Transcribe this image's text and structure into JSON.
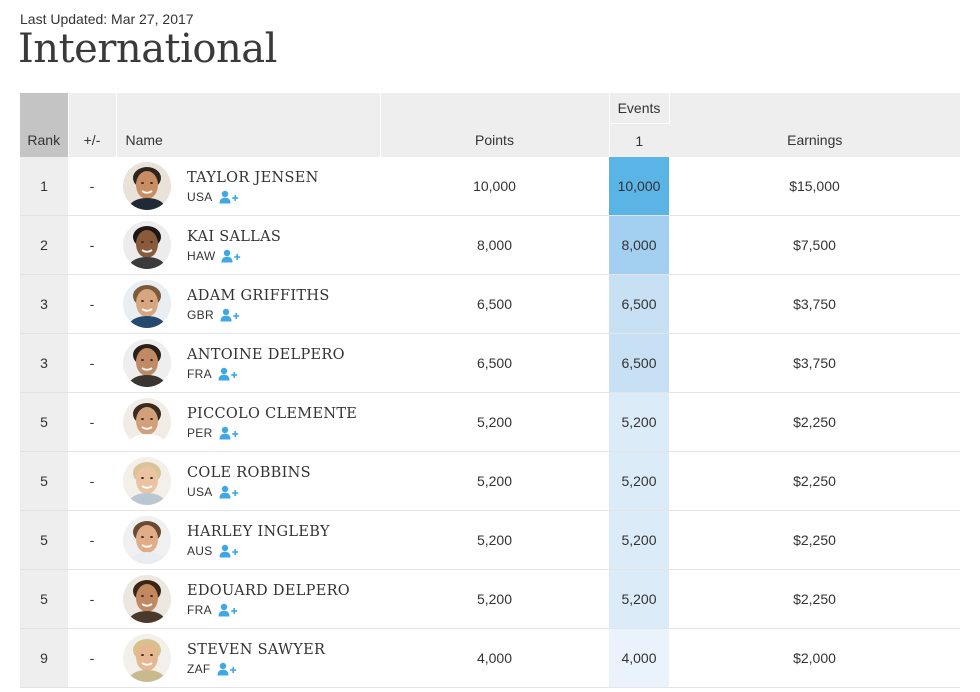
{
  "header": {
    "last_updated": "Last Updated: Mar 27, 2017",
    "title": "International"
  },
  "table": {
    "columns": {
      "rank": "Rank",
      "change": "+/-",
      "name": "Name",
      "points": "Points",
      "events_group": "Events",
      "event_1": "1",
      "earnings": "Earnings"
    },
    "rows": [
      {
        "rank": "1",
        "change": "-",
        "name": "TAYLOR JENSEN",
        "country": "USA",
        "points": "10,000",
        "event1": "10,000",
        "earnings": "$15,000",
        "event1_color": "#5ab4e6"
      },
      {
        "rank": "2",
        "change": "-",
        "name": "KAI SALLAS",
        "country": "HAW",
        "points": "8,000",
        "event1": "8,000",
        "earnings": "$7,500",
        "event1_color": "#a3cff0"
      },
      {
        "rank": "3",
        "change": "-",
        "name": "ADAM GRIFFITHS",
        "country": "GBR",
        "points": "6,500",
        "event1": "6,500",
        "earnings": "$3,750",
        "event1_color": "#c8e0f4"
      },
      {
        "rank": "3",
        "change": "-",
        "name": "ANTOINE DELPERO",
        "country": "FRA",
        "points": "6,500",
        "event1": "6,500",
        "earnings": "$3,750",
        "event1_color": "#c8e0f4"
      },
      {
        "rank": "5",
        "change": "-",
        "name": "PICCOLO CLEMENTE",
        "country": "PER",
        "points": "5,200",
        "event1": "5,200",
        "earnings": "$2,250",
        "event1_color": "#dcebf8"
      },
      {
        "rank": "5",
        "change": "-",
        "name": "COLE ROBBINS",
        "country": "USA",
        "points": "5,200",
        "event1": "5,200",
        "earnings": "$2,250",
        "event1_color": "#dcebf8"
      },
      {
        "rank": "5",
        "change": "-",
        "name": "HARLEY INGLEBY",
        "country": "AUS",
        "points": "5,200",
        "event1": "5,200",
        "earnings": "$2,250",
        "event1_color": "#dcebf8"
      },
      {
        "rank": "5",
        "change": "-",
        "name": "EDOUARD DELPERO",
        "country": "FRA",
        "points": "5,200",
        "event1": "5,200",
        "earnings": "$2,250",
        "event1_color": "#dcebf8"
      },
      {
        "rank": "9",
        "change": "-",
        "name": "STEVEN SAWYER",
        "country": "ZAF",
        "points": "4,000",
        "event1": "4,000",
        "earnings": "$2,000",
        "event1_color": "#eaf3fb"
      }
    ]
  },
  "icons": {
    "follow": "add-user-icon",
    "avatar": "surfer-photo"
  },
  "colors": {
    "follow_icon": "#3ea8e6",
    "rank_column": "#eeeeee",
    "rank_header": "#c4c4c4",
    "header_bg": "#eeeeee"
  }
}
